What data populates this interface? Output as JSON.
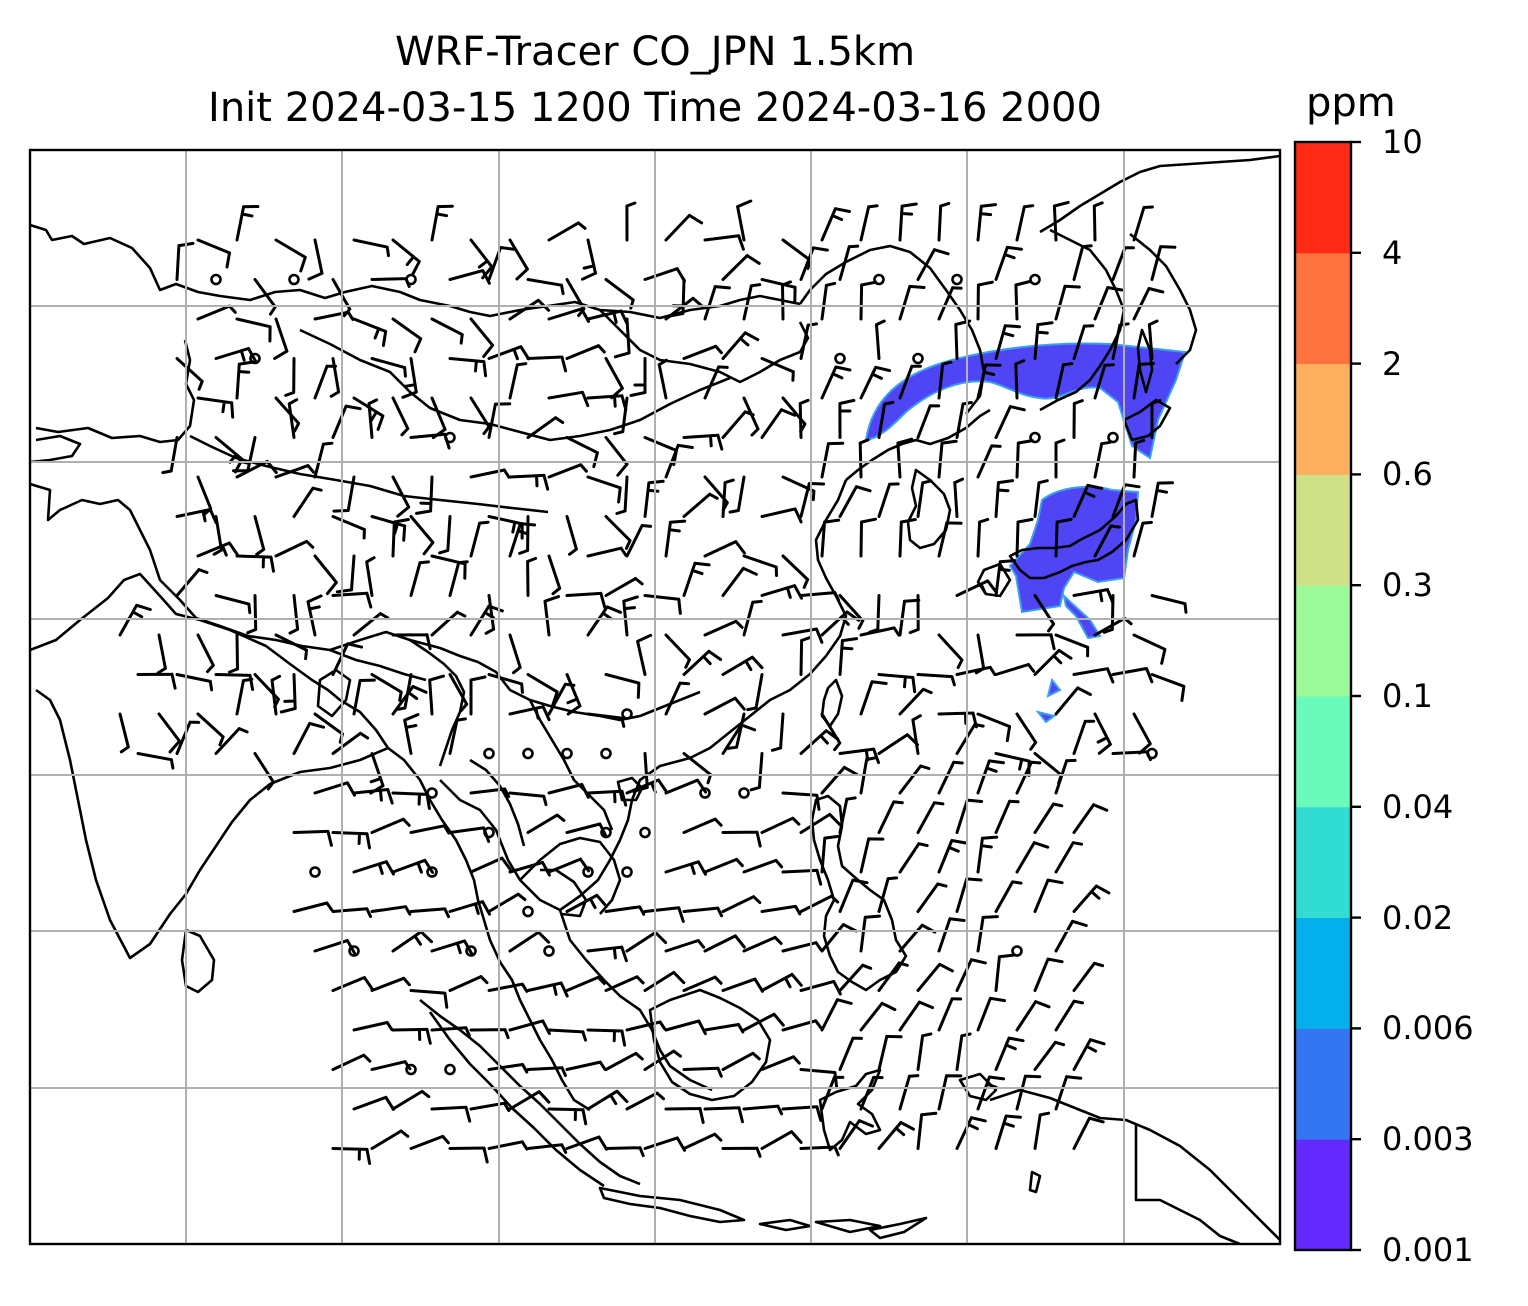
{
  "title": {
    "line1": "WRF-Tracer CO_JPN 1.5km",
    "line2": "Init 2024-03-15 1200 Time 2024-03-16 2000"
  },
  "colorbar": {
    "unit": "ppm",
    "levels": [
      "0.001",
      "0.003",
      "0.006",
      "0.02",
      "0.04",
      "0.1",
      "0.3",
      "0.6",
      "2",
      "4",
      "10"
    ],
    "colors": [
      "#6329fe",
      "#3475f2",
      "#03b0ec",
      "#31dcd3",
      "#6afabb",
      "#9cfa9a",
      "#cfe187",
      "#fdaf60",
      "#fe723e",
      "#fe2a15"
    ]
  },
  "plume_color": "#4f45f5",
  "plume_edge_color": "#3aa0ee"
}
